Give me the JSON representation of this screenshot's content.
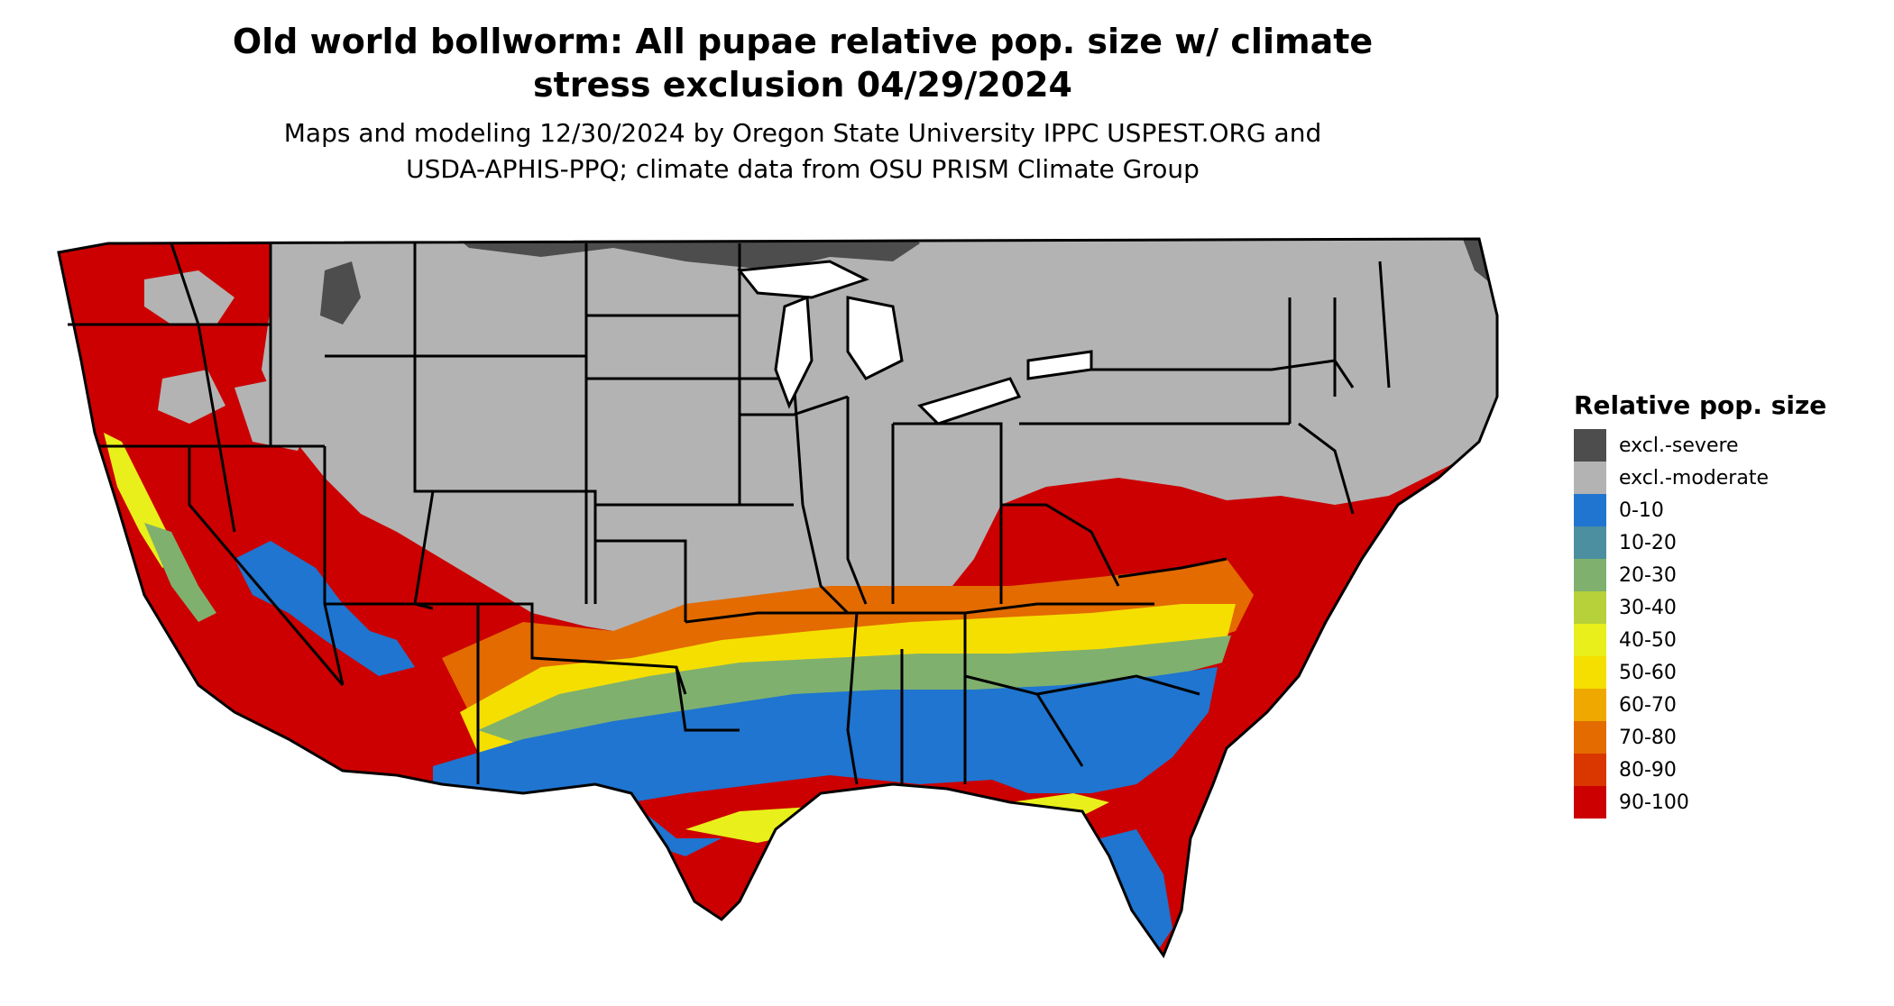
{
  "title_line1": "Old world bollworm: All pupae relative pop. size w/ climate",
  "title_line2": "stress exclusion 04/29/2024",
  "subtitle_line1": "Maps and modeling 12/30/2024 by Oregon State University IPPC USPEST.ORG and",
  "subtitle_line2": "USDA-APHIS-PPQ; climate data from OSU PRISM Climate Group",
  "legend": {
    "title": "Relative pop. size",
    "items": [
      {
        "label": "excl.-severe",
        "color": "#4d4d4d"
      },
      {
        "label": "excl.-moderate",
        "color": "#b3b3b3"
      },
      {
        "label": "0-10",
        "color": "#1f75d0"
      },
      {
        "label": "10-20",
        "color": "#4b8fa0"
      },
      {
        "label": "20-30",
        "color": "#7fb06e"
      },
      {
        "label": "30-40",
        "color": "#b6d13a"
      },
      {
        "label": "40-50",
        "color": "#e9ef1a"
      },
      {
        "label": "50-60",
        "color": "#f5df00"
      },
      {
        "label": "60-70",
        "color": "#efa800"
      },
      {
        "label": "70-80",
        "color": "#e36b00"
      },
      {
        "label": "80-90",
        "color": "#d93600"
      },
      {
        "label": "90-100",
        "color": "#cc0000"
      }
    ]
  }
}
